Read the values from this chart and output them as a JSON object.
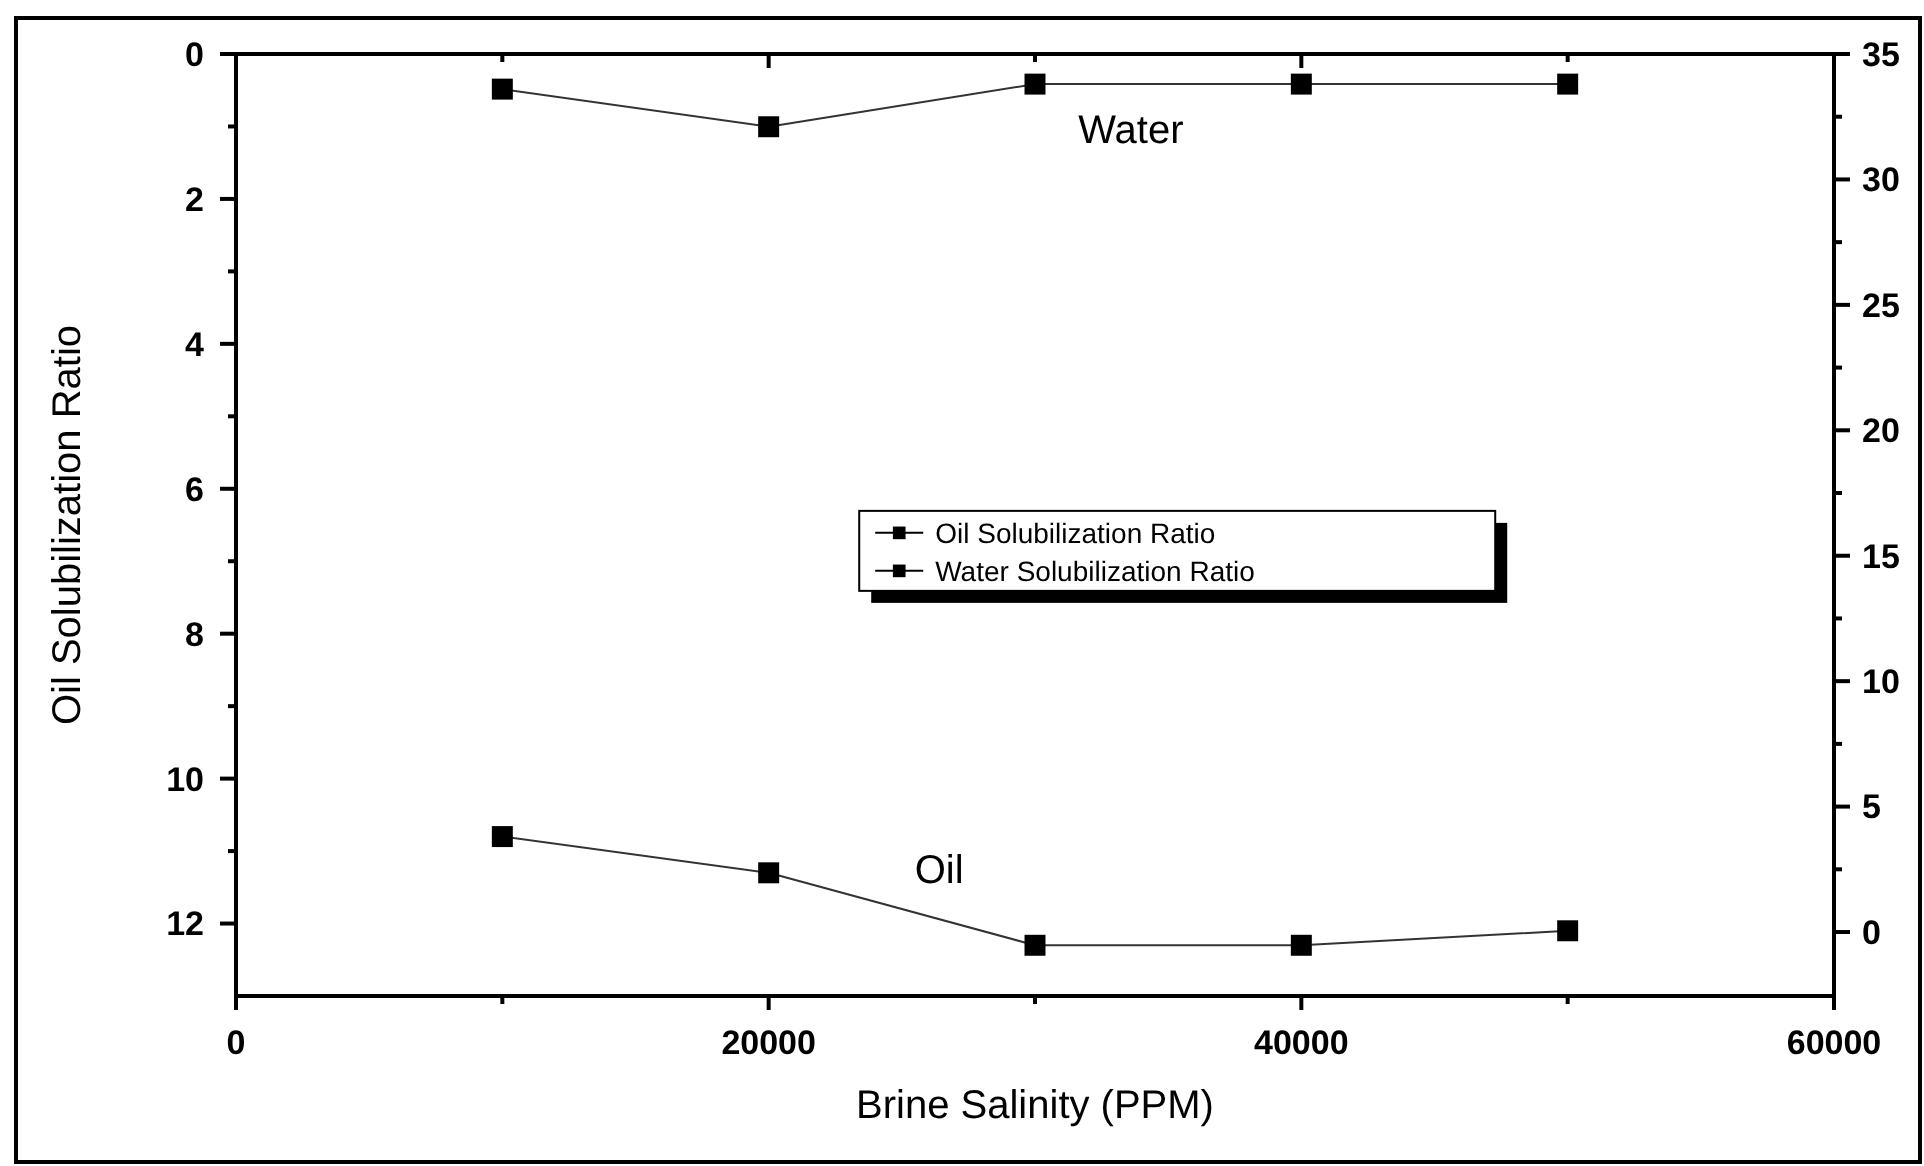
{
  "chart_data": {
    "type": "line",
    "xlabel": "Brine Salinity (PPM)",
    "ylabel": "Oil Solubilization Ratio",
    "x": [
      10000,
      20000,
      30000,
      40000,
      50000
    ],
    "series": [
      {
        "name": "Oil Solubilization Ratio",
        "color": "#000000",
        "values": [
          10.8,
          11.3,
          12.3,
          12.3,
          12.1
        ]
      },
      {
        "name": "Water Solubilization Ratio",
        "color": "#000000",
        "axis": "y2",
        "values": [
          33.6,
          32.1,
          33.8,
          33.8,
          33.8
        ]
      }
    ],
    "xlim": [
      0,
      60000
    ],
    "xticks": [
      0,
      {
        "value": 10000,
        "label": null
      },
      20000,
      {
        "value": 30000,
        "label": null
      },
      40000,
      {
        "value": 50000,
        "label": null
      },
      60000
    ],
    "ylim": [
      13,
      0
    ],
    "yticks": [
      0,
      {
        "value": 1,
        "label": null
      },
      2,
      {
        "value": 3,
        "label": null
      },
      4,
      {
        "value": 5,
        "label": null
      },
      6,
      {
        "value": 7,
        "label": null
      },
      8,
      {
        "value": 9,
        "label": null
      },
      10,
      {
        "value": 11,
        "label": null
      },
      12
    ],
    "y2lim": [
      -2.55,
      35
    ],
    "y2ticks": [
      0,
      {
        "value": 2.5,
        "label": null
      },
      5,
      {
        "value": 7.5,
        "label": null
      },
      10,
      {
        "value": 12.5,
        "label": null
      },
      15,
      {
        "value": 17.5,
        "label": null
      },
      20,
      {
        "value": 22.5,
        "label": null
      },
      25,
      {
        "value": 27.5,
        "label": null
      },
      30,
      {
        "value": 32.5,
        "label": null
      },
      35
    ],
    "annotations": [
      "Water",
      "Oil"
    ],
    "marker": "square",
    "line_style": "solid",
    "grid": false,
    "legend": "center"
  }
}
